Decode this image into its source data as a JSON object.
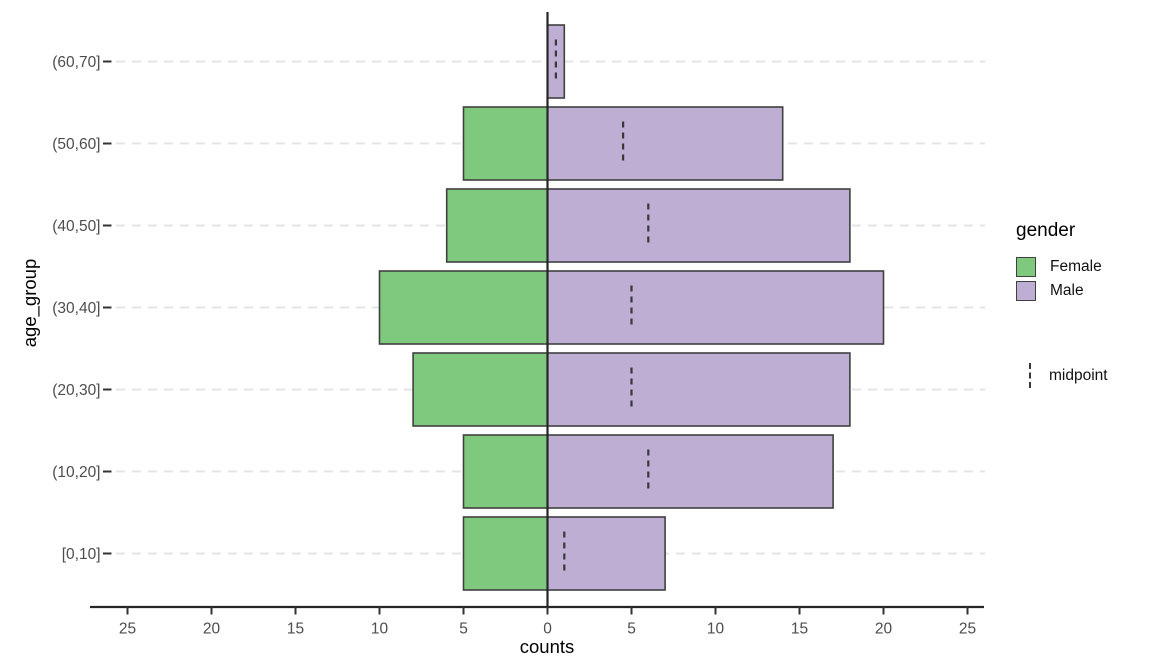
{
  "chart_data": {
    "type": "bar",
    "variant": "population-pyramid",
    "orientation": "horizontal",
    "title": "",
    "xlabel": "counts",
    "ylabel": "age_group",
    "legend": {
      "title": "gender",
      "position": "right",
      "entries": [
        {
          "label": "Female",
          "color": "#7fc97f"
        },
        {
          "label": "Male",
          "color": "#beaed4"
        }
      ],
      "midpoint_entry": {
        "label": "midpoint",
        "symbol": "vertical-dashed-line"
      }
    },
    "x_axis": {
      "ticks": [
        -25,
        -20,
        -15,
        -10,
        -5,
        0,
        5,
        10,
        15,
        20,
        25
      ],
      "tick_labels": [
        "25",
        "20",
        "15",
        "10",
        "5",
        "0",
        "5",
        "10",
        "15",
        "20",
        "25"
      ],
      "range": [
        -26,
        26
      ],
      "negative_side_series": "Female",
      "positive_side_series": "Male"
    },
    "rows": [
      {
        "age_group": "(60,70]",
        "female": 0,
        "male": 1,
        "midpoint": 0.5
      },
      {
        "age_group": "(50,60]",
        "female": 5,
        "male": 14,
        "midpoint": 4.5
      },
      {
        "age_group": "(40,50]",
        "female": 6,
        "male": 18,
        "midpoint": 6
      },
      {
        "age_group": "(30,40]",
        "female": 10,
        "male": 20,
        "midpoint": 5
      },
      {
        "age_group": "(20,30]",
        "female": 8,
        "male": 18,
        "midpoint": 5
      },
      {
        "age_group": "(10,20]",
        "female": 5,
        "male": 17,
        "midpoint": 6
      },
      {
        "age_group": "[0,10]",
        "female": 5,
        "male": 7,
        "midpoint": 1
      }
    ],
    "grid": {
      "horizontal_dashed": true,
      "vertical": false
    },
    "colors": {
      "female": "#7fc97f",
      "male": "#beaed4",
      "bar_stroke": "#404040",
      "midpoint_line": "#383838",
      "grid_line": "#e4e4e4",
      "axis_line": "#262626",
      "tick_mark": "#333333",
      "tick_label": "#4d4d4d",
      "axis_title": "#000000"
    }
  }
}
